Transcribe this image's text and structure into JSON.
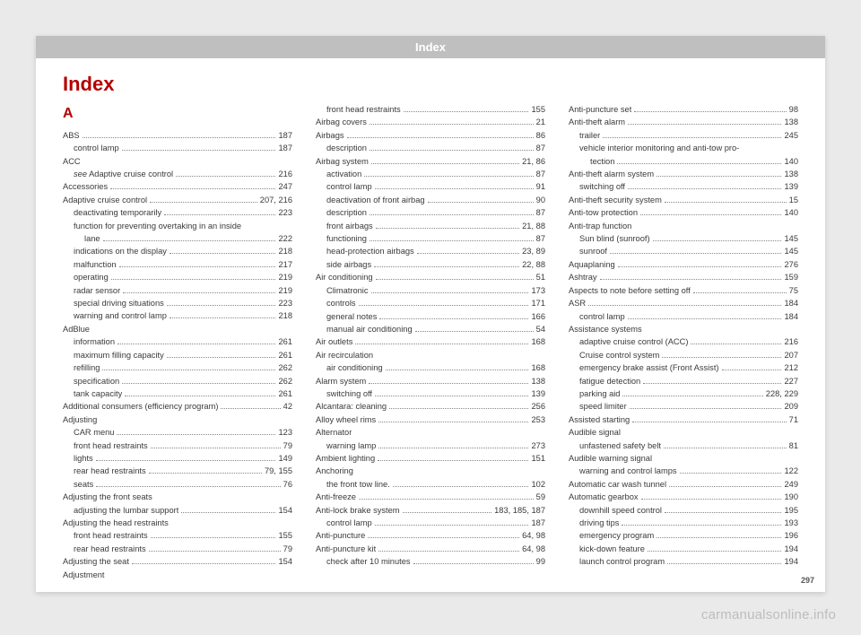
{
  "header": "Index",
  "title": "Index",
  "section_letter": "A",
  "page_number": "297",
  "watermark": "carmanualsonline.info",
  "entries": [
    {
      "label": "ABS",
      "page": "187",
      "level": 0
    },
    {
      "label": "control lamp",
      "page": "187",
      "level": 1
    },
    {
      "label": "ACC",
      "level": 0,
      "nopage": true
    },
    {
      "label": "see Adaptive cruise control",
      "page": "216",
      "level": 1,
      "italicPrefix": "see "
    },
    {
      "label": "Accessories",
      "page": "247",
      "level": 0
    },
    {
      "label": "Adaptive cruise control",
      "page": "207, 216",
      "level": 0
    },
    {
      "label": "deactivating temporarily",
      "page": "223",
      "level": 1
    },
    {
      "label": "function for preventing overtaking in an inside lane",
      "page": "222",
      "level": 1,
      "wrap": true
    },
    {
      "label": "indications on the display",
      "page": "218",
      "level": 1
    },
    {
      "label": "malfunction",
      "page": "217",
      "level": 1
    },
    {
      "label": "operating",
      "page": "219",
      "level": 1
    },
    {
      "label": "radar sensor",
      "page": "219",
      "level": 1
    },
    {
      "label": "special driving situations",
      "page": "223",
      "level": 1
    },
    {
      "label": "warning and control lamp",
      "page": "218",
      "level": 1
    },
    {
      "label": "AdBlue",
      "level": 0,
      "nopage": true
    },
    {
      "label": "information",
      "page": "261",
      "level": 1
    },
    {
      "label": "maximum filling capacity",
      "page": "261",
      "level": 1
    },
    {
      "label": "refilling",
      "page": "262",
      "level": 1
    },
    {
      "label": "specification",
      "page": "262",
      "level": 1
    },
    {
      "label": "tank capacity",
      "page": "261",
      "level": 1
    },
    {
      "label": "Additional consumers (efficiency program)",
      "page": "42",
      "level": 0
    },
    {
      "label": "Adjusting",
      "level": 0,
      "nopage": true
    },
    {
      "label": "CAR menu",
      "page": "123",
      "level": 1
    },
    {
      "label": "front head restraints",
      "page": "79",
      "level": 1
    },
    {
      "label": "lights",
      "page": "149",
      "level": 1
    },
    {
      "label": "rear head restraints",
      "page": "79, 155",
      "level": 1
    },
    {
      "label": "seats",
      "page": "76",
      "level": 1
    },
    {
      "label": "Adjusting the front seats",
      "level": 0,
      "nopage": true
    },
    {
      "label": "adjusting the lumbar support",
      "page": "154",
      "level": 1
    },
    {
      "label": "Adjusting the head restraints",
      "level": 0,
      "nopage": true
    },
    {
      "label": "front head restraints",
      "page": "155",
      "level": 1
    },
    {
      "label": "rear head restraints",
      "page": "79",
      "level": 1
    },
    {
      "label": "Adjusting the seat",
      "page": "154",
      "level": 0
    },
    {
      "label": "Adjustment",
      "level": 0,
      "nopage": true
    },
    {
      "label": "front head restraints",
      "page": "155",
      "level": 1
    },
    {
      "label": "Airbag covers",
      "page": "21",
      "level": 0
    },
    {
      "label": "Airbags",
      "page": "86",
      "level": 0
    },
    {
      "label": "description",
      "page": "87",
      "level": 1
    },
    {
      "label": "Airbag system",
      "page": "21, 86",
      "level": 0
    },
    {
      "label": "activation",
      "page": "87",
      "level": 1
    },
    {
      "label": "control lamp",
      "page": "91",
      "level": 1
    },
    {
      "label": "deactivation of front airbag",
      "page": "90",
      "level": 1
    },
    {
      "label": "description",
      "page": "87",
      "level": 1
    },
    {
      "label": "front airbags",
      "page": "21, 88",
      "level": 1
    },
    {
      "label": "functioning",
      "page": "87",
      "level": 1
    },
    {
      "label": "head-protection airbags",
      "page": "23, 89",
      "level": 1
    },
    {
      "label": "side airbags",
      "page": "22, 88",
      "level": 1
    },
    {
      "label": "Air conditioning",
      "page": "51",
      "level": 0
    },
    {
      "label": "Climatronic",
      "page": "173",
      "level": 1
    },
    {
      "label": "controls",
      "page": "171",
      "level": 1
    },
    {
      "label": "general notes",
      "page": "166",
      "level": 1
    },
    {
      "label": "manual air conditioning",
      "page": "54",
      "level": 1
    },
    {
      "label": "Air outlets",
      "page": "168",
      "level": 0
    },
    {
      "label": "Air recirculation",
      "level": 0,
      "nopage": true
    },
    {
      "label": "air conditioning",
      "page": "168",
      "level": 1
    },
    {
      "label": "Alarm system",
      "page": "138",
      "level": 0
    },
    {
      "label": "switching off",
      "page": "139",
      "level": 1
    },
    {
      "label": "Alcantara: cleaning",
      "page": "256",
      "level": 0
    },
    {
      "label": "Alloy wheel rims",
      "page": "253",
      "level": 0
    },
    {
      "label": "Alternator",
      "level": 0,
      "nopage": true
    },
    {
      "label": "warning lamp",
      "page": "273",
      "level": 1
    },
    {
      "label": "Ambient lighting",
      "page": "151",
      "level": 0
    },
    {
      "label": "Anchoring",
      "level": 0,
      "nopage": true
    },
    {
      "label": "the front tow line.",
      "page": "102",
      "level": 1
    },
    {
      "label": "Anti-freeze",
      "page": "59",
      "level": 0
    },
    {
      "label": "Anti-lock brake system",
      "page": "183, 185, 187",
      "level": 0
    },
    {
      "label": "control lamp",
      "page": "187",
      "level": 1
    },
    {
      "label": "Anti-puncture",
      "page": "64, 98",
      "level": 0
    },
    {
      "label": "Anti-puncture kit",
      "page": "64, 98",
      "level": 0
    },
    {
      "label": "check after 10 minutes",
      "page": "99",
      "level": 1
    },
    {
      "label": "Anti-puncture set",
      "page": "98",
      "level": 0
    },
    {
      "label": "Anti-theft alarm",
      "page": "138",
      "level": 0
    },
    {
      "label": "trailer",
      "page": "245",
      "level": 1
    },
    {
      "label": "vehicle interior monitoring and anti-tow protection",
      "page": "140",
      "level": 1,
      "wrap": true
    },
    {
      "label": "Anti-theft alarm system",
      "page": "138",
      "level": 0
    },
    {
      "label": "switching off",
      "page": "139",
      "level": 1
    },
    {
      "label": "Anti-theft security system",
      "page": "15",
      "level": 0
    },
    {
      "label": "Anti-tow protection",
      "page": "140",
      "level": 0
    },
    {
      "label": "Anti-trap function",
      "level": 0,
      "nopage": true
    },
    {
      "label": "Sun blind (sunroof)",
      "page": "145",
      "level": 1
    },
    {
      "label": "sunroof",
      "page": "145",
      "level": 1
    },
    {
      "label": "Aquaplaning",
      "page": "276",
      "level": 0
    },
    {
      "label": "Ashtray",
      "page": "159",
      "level": 0
    },
    {
      "label": "Aspects to note before setting off",
      "page": "75",
      "level": 0
    },
    {
      "label": "ASR",
      "page": "184",
      "level": 0
    },
    {
      "label": "control lamp",
      "page": "184",
      "level": 1
    },
    {
      "label": "Assistance systems",
      "level": 0,
      "nopage": true
    },
    {
      "label": "adaptive cruise control (ACC)",
      "page": "216",
      "level": 1
    },
    {
      "label": "Cruise control system",
      "page": "207",
      "level": 1
    },
    {
      "label": "emergency brake assist (Front Assist)",
      "page": "212",
      "level": 1
    },
    {
      "label": "fatigue detection",
      "page": "227",
      "level": 1
    },
    {
      "label": "parking aid",
      "page": "228, 229",
      "level": 1
    },
    {
      "label": "speed limiter",
      "page": "209",
      "level": 1
    },
    {
      "label": "Assisted starting",
      "page": "71",
      "level": 0
    },
    {
      "label": "Audible signal",
      "level": 0,
      "nopage": true
    },
    {
      "label": "unfastened safety belt",
      "page": "81",
      "level": 1
    },
    {
      "label": "Audible warning signal",
      "level": 0,
      "nopage": true
    },
    {
      "label": "warning and control lamps",
      "page": "122",
      "level": 1
    },
    {
      "label": "Automatic car wash tunnel",
      "page": "249",
      "level": 0
    },
    {
      "label": "Automatic gearbox",
      "page": "190",
      "level": 0
    },
    {
      "label": "downhill speed control",
      "page": "195",
      "level": 1
    },
    {
      "label": "driving tips",
      "page": "193",
      "level": 1
    },
    {
      "label": "emergency program",
      "page": "196",
      "level": 1
    },
    {
      "label": "kick-down feature",
      "page": "194",
      "level": 1
    },
    {
      "label": "launch control program",
      "page": "194",
      "level": 1
    }
  ]
}
